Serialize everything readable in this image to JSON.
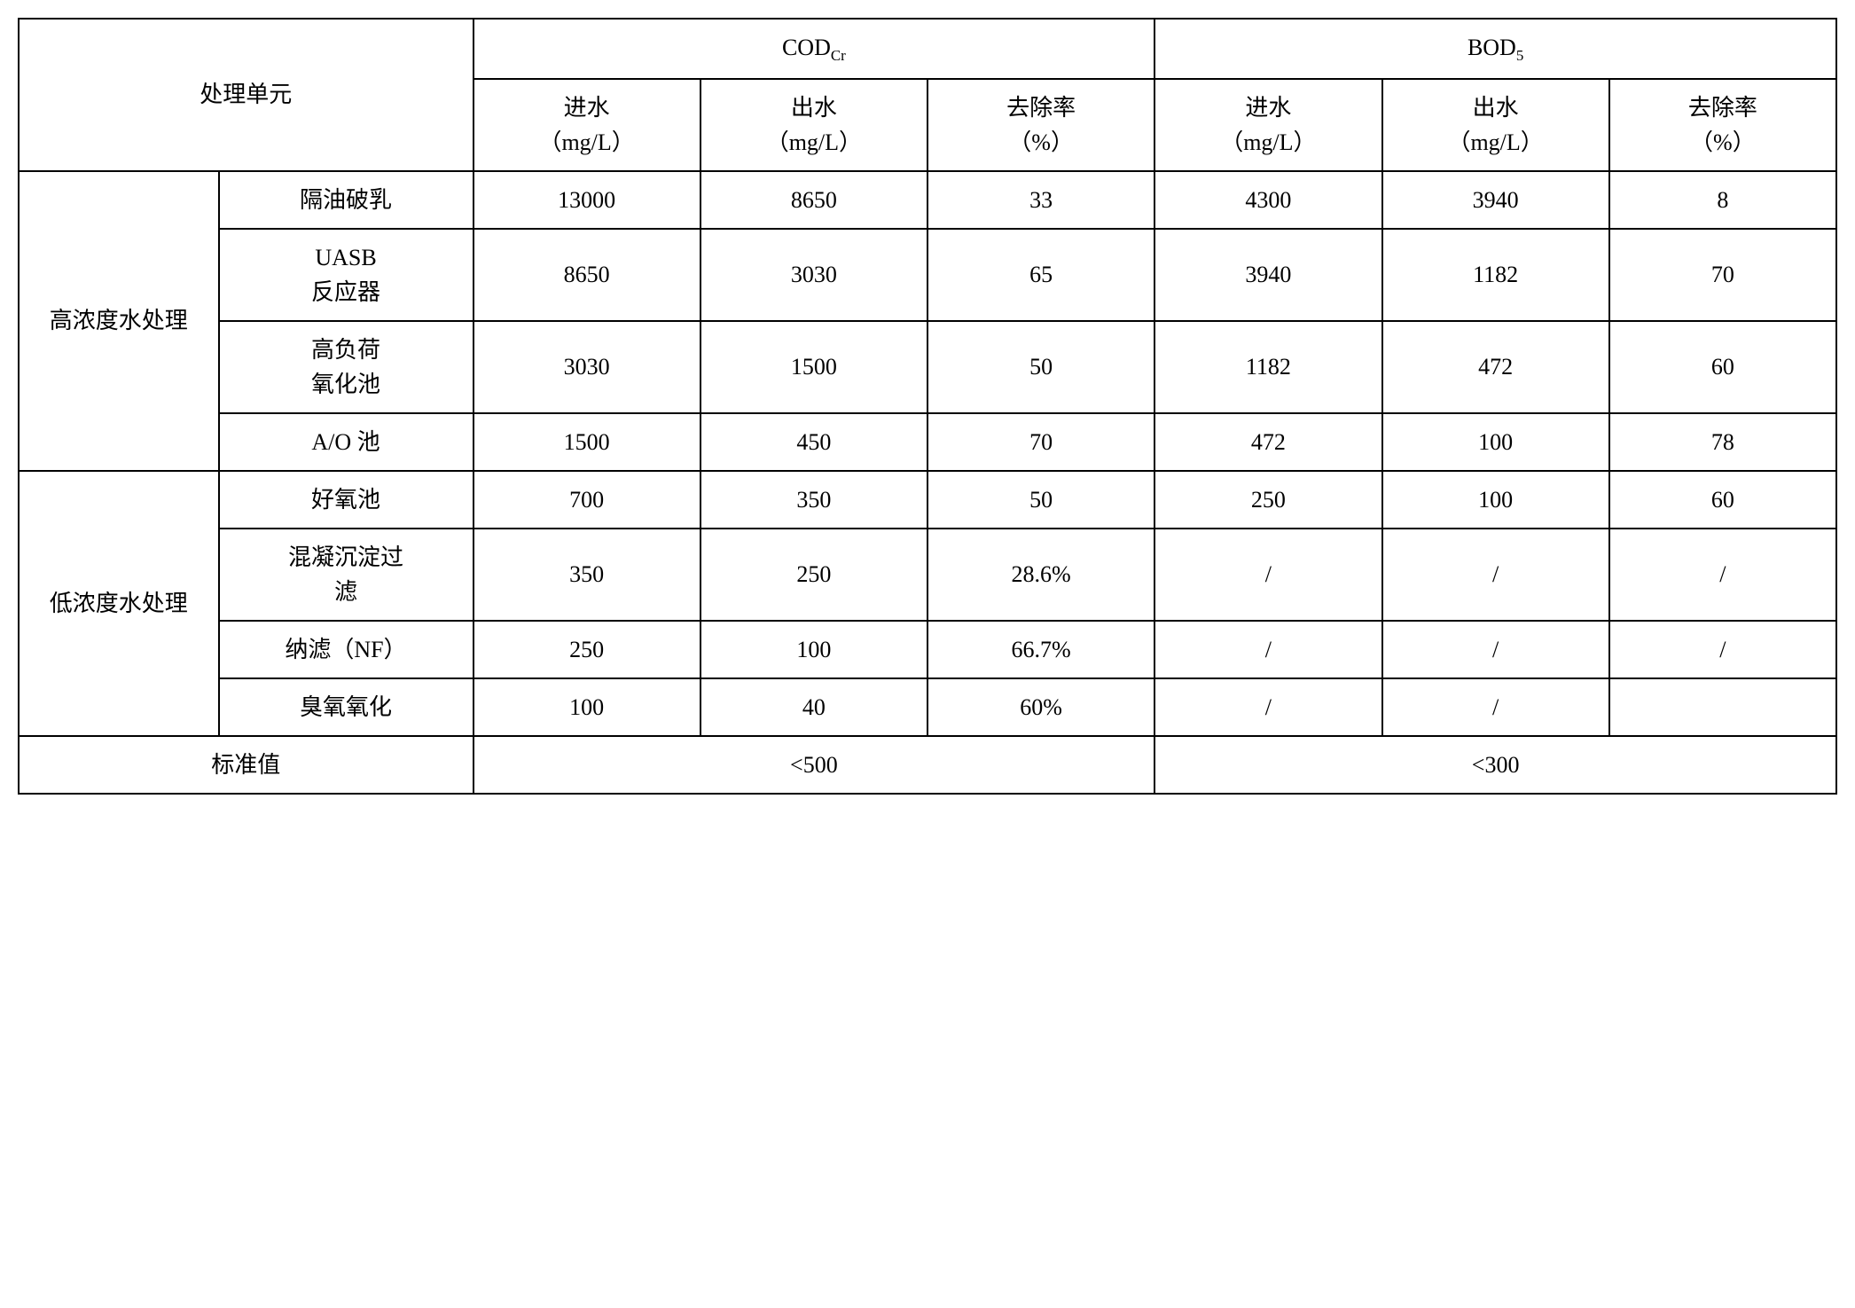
{
  "table": {
    "headers": {
      "treatment_unit": "处理单元",
      "cod_label_html": "COD<sub>Cr</sub>",
      "bod_label_html": "BOD<sub>5</sub>",
      "influent": "进水",
      "influent_unit": "（mg/L）",
      "effluent": "出水",
      "effluent_unit": "（mg/L）",
      "removal": "去除率",
      "removal_unit": "（%）"
    },
    "groups": {
      "high": "高浓度水处理",
      "low": "低浓度水处理",
      "standard": "标准值"
    },
    "rows": [
      {
        "process": "隔油破乳",
        "cod_in": "13000",
        "cod_out": "8650",
        "cod_rm": "33",
        "bod_in": "4300",
        "bod_out": "3940",
        "bod_rm": "8"
      },
      {
        "process_html": "UASB<br>反应器",
        "cod_in": "8650",
        "cod_out": "3030",
        "cod_rm": "65",
        "bod_in": "3940",
        "bod_out": "1182",
        "bod_rm": "70"
      },
      {
        "process_html": "高负荷<br>氧化池",
        "cod_in": "3030",
        "cod_out": "1500",
        "cod_rm": "50",
        "bod_in": "1182",
        "bod_out": "472",
        "bod_rm": "60"
      },
      {
        "process": "A/O 池",
        "cod_in": "1500",
        "cod_out": "450",
        "cod_rm": "70",
        "bod_in": "472",
        "bod_out": "100",
        "bod_rm": "78"
      },
      {
        "process": "好氧池",
        "cod_in": "700",
        "cod_out": "350",
        "cod_rm": "50",
        "bod_in": "250",
        "bod_out": "100",
        "bod_rm": "60"
      },
      {
        "process_html": "混凝沉淀过<br>滤",
        "cod_in": "350",
        "cod_out": "250",
        "cod_rm": "28.6%",
        "bod_in": "/",
        "bod_out": "/",
        "bod_rm": "/"
      },
      {
        "process": "纳滤（NF）",
        "cod_in": "250",
        "cod_out": "100",
        "cod_rm": "66.7%",
        "bod_in": "/",
        "bod_out": "/",
        "bod_rm": "/"
      },
      {
        "process": "臭氧氧化",
        "cod_in": "100",
        "cod_out": "40",
        "cod_rm": "60%",
        "bod_in": "/",
        "bod_out": "/",
        "bod_rm": ""
      }
    ],
    "standard": {
      "cod": "<500",
      "bod": "<300"
    }
  }
}
